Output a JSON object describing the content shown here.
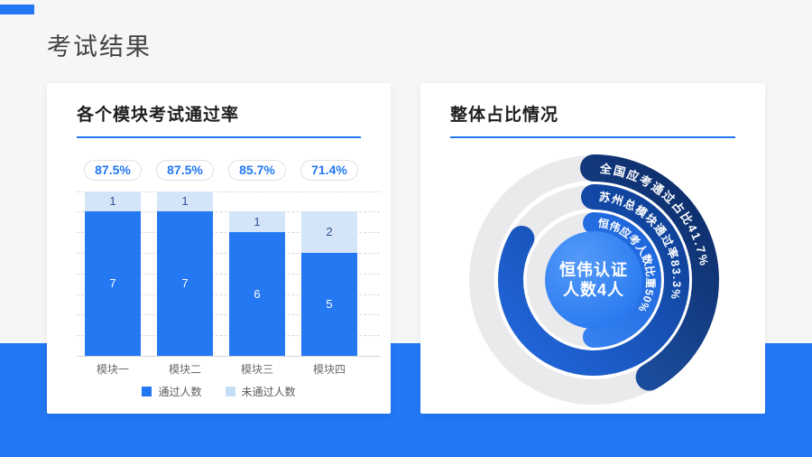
{
  "page": {
    "title": "考试结果"
  },
  "colors": {
    "accent_blue": "#2277F2",
    "bar_pass": "#2478F2",
    "bar_fail": "#D4E5FA",
    "ring_gray": "#EAEAEC",
    "ring_outer_dark": "#0B2964",
    "ring_outer_light": "#2563C0",
    "ring_middle_dark": "#0D3E92",
    "ring_middle_light": "#2268DE",
    "ring_inner_dark": "#1A63DA",
    "ring_inner_light": "#3E89F6",
    "center_circle": "#1E70EC"
  },
  "left_panel": {
    "title": "各个模块考试通过率",
    "legend": [
      {
        "label": "通过人数",
        "color": "#2377F0"
      },
      {
        "label": "未通过人数",
        "color": "#C6DDF8"
      }
    ]
  },
  "right_panel": {
    "title": "整体占比情况"
  },
  "chart_data": [
    {
      "type": "bar",
      "stacked": true,
      "title": "各个模块考试通过率",
      "categories": [
        "模块一",
        "模块二",
        "模块三",
        "模块四"
      ],
      "series": [
        {
          "name": "通过人数",
          "values": [
            7,
            7,
            6,
            5
          ]
        },
        {
          "name": "未通过人数",
          "values": [
            1,
            1,
            1,
            2
          ]
        }
      ],
      "pass_rate_badges": [
        "87.5%",
        "87.5%",
        "85.7%",
        "71.4%"
      ],
      "xlabel": "",
      "ylabel": "",
      "ylim": [
        0,
        8
      ],
      "grid": "horizontal dashed, every 1 unit",
      "legend_position": "bottom"
    },
    {
      "type": "pie",
      "subtype": "concentric-radial-progress-rings",
      "title": "整体占比情况",
      "rings": [
        {
          "label": "全国应考通过占比41.7%",
          "value": 41.7
        },
        {
          "label": "苏州总模块通过率83.3%",
          "value": 83.3
        },
        {
          "label": "恒伟应考人数比重50%",
          "value": 50
        }
      ],
      "center_label": [
        "恒伟认证",
        "人数4人"
      ],
      "start_angle": "12 o'clock, clockwise"
    }
  ]
}
